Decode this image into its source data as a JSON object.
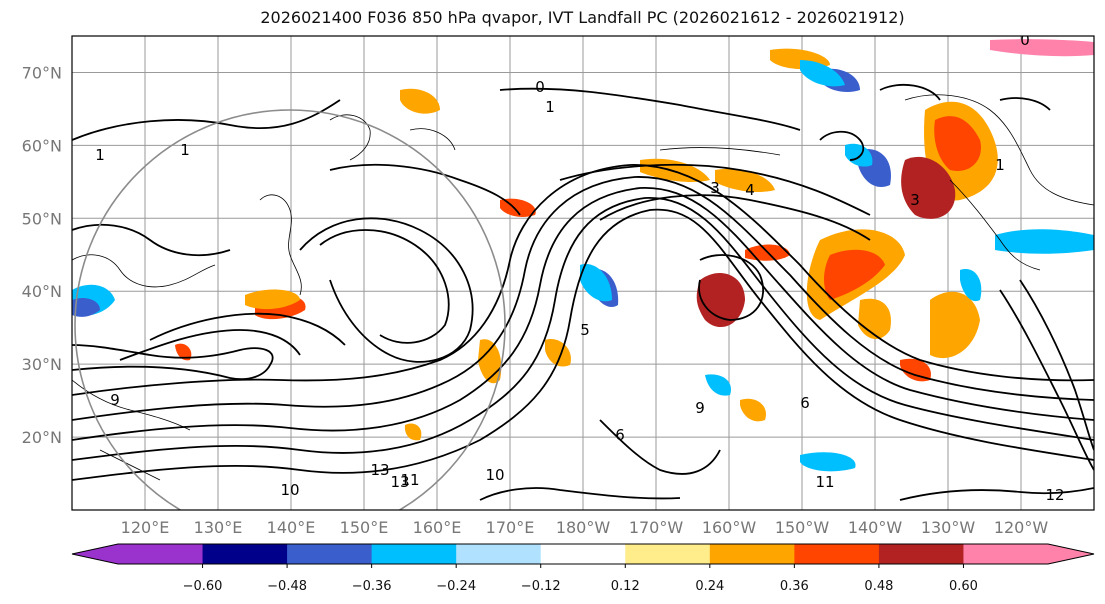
{
  "title": "2026021400 F036 850 hPa qvapor, IVT Landfall PC (2026021612 - 2026021912)",
  "map": {
    "lon_range": [
      110,
      250
    ],
    "lat_range": [
      10,
      75
    ],
    "lat_labels": [
      "70°N",
      "60°N",
      "50°N",
      "40°N",
      "30°N",
      "20°N"
    ],
    "lat_values": [
      70,
      60,
      50,
      40,
      30,
      20
    ],
    "lon_labels": [
      "120°E",
      "130°E",
      "140°E",
      "150°E",
      "160°E",
      "170°E",
      "180°W",
      "170°W",
      "160°W",
      "150°W",
      "140°W",
      "130°W",
      "120°W"
    ],
    "lon_values": [
      120,
      130,
      140,
      150,
      160,
      170,
      180,
      190,
      200,
      210,
      220,
      230,
      240
    ],
    "grid": true,
    "contour_labels": [
      "0",
      "1",
      "1",
      "1",
      "1",
      "3",
      "3",
      "4",
      "5",
      "6",
      "6",
      "9",
      "9",
      "10",
      "10",
      "11",
      "11",
      "12",
      "13",
      "13",
      "0"
    ]
  },
  "colorbar": {
    "colors": [
      "#9a32cd",
      "#00008b",
      "#3a5fcd",
      "#00bfff",
      "#b0e2ff",
      "#ffffff",
      "#ffec8b",
      "#ffa500",
      "#ff4500",
      "#b22222",
      "#ff82ab"
    ],
    "tick_labels": [
      "−0.60",
      "−0.48",
      "−0.36",
      "−0.24",
      "−0.12",
      "0.12",
      "0.24",
      "0.36",
      "0.48",
      "0.60"
    ]
  }
}
